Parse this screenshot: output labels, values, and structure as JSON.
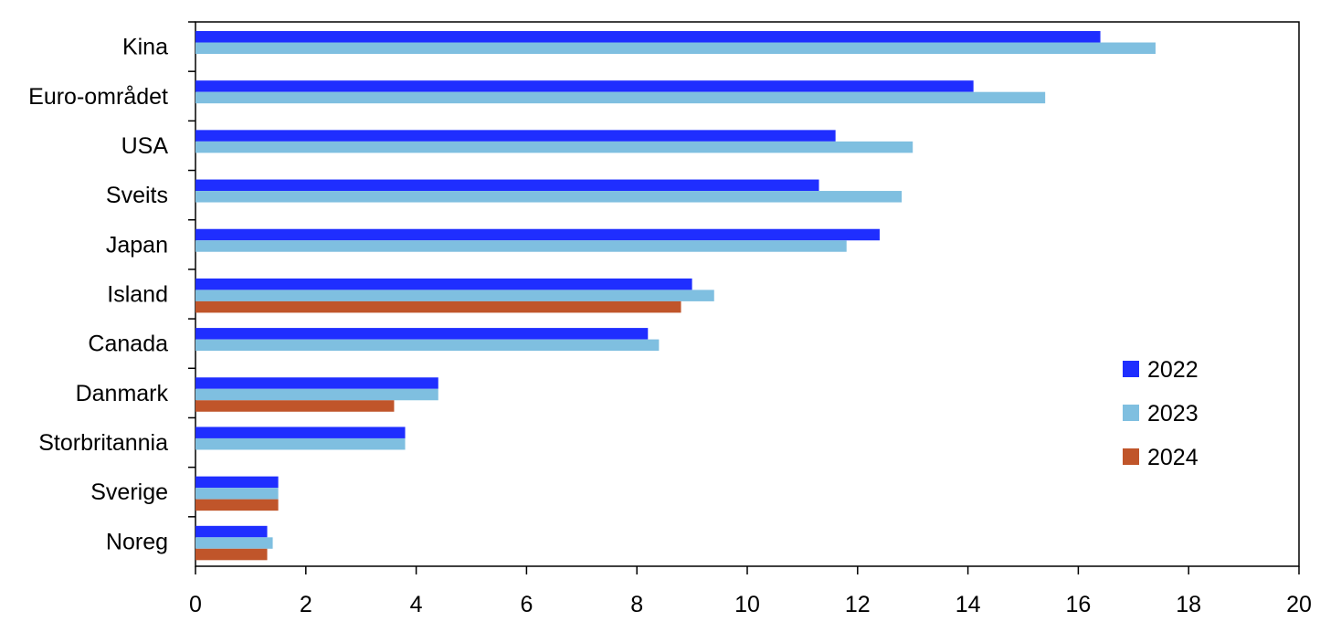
{
  "chart_data": {
    "type": "bar",
    "orientation": "horizontal",
    "categories": [
      "Kina",
      "Euro-området",
      "USA",
      "Sveits",
      "Japan",
      "Island",
      "Canada",
      "Danmark",
      "Storbritannia",
      "Sverige",
      "Noreg"
    ],
    "series": [
      {
        "name": "2022",
        "color": "#1f2eff",
        "values": [
          16.4,
          14.1,
          11.6,
          11.3,
          12.4,
          9.0,
          8.2,
          4.4,
          3.8,
          1.5,
          1.3
        ]
      },
      {
        "name": "2023",
        "color": "#7fbfe0",
        "values": [
          17.4,
          15.4,
          13.0,
          12.8,
          11.8,
          9.4,
          8.4,
          4.4,
          3.8,
          1.5,
          1.4
        ]
      },
      {
        "name": "2024",
        "color": "#c0552a",
        "values": [
          null,
          null,
          null,
          null,
          null,
          8.8,
          null,
          3.6,
          null,
          1.5,
          1.3
        ]
      }
    ],
    "xlim": [
      0,
      20
    ],
    "xticks": [
      0,
      2,
      4,
      6,
      8,
      10,
      12,
      14,
      16,
      18,
      20
    ],
    "grid": false,
    "legend_position": "right"
  }
}
